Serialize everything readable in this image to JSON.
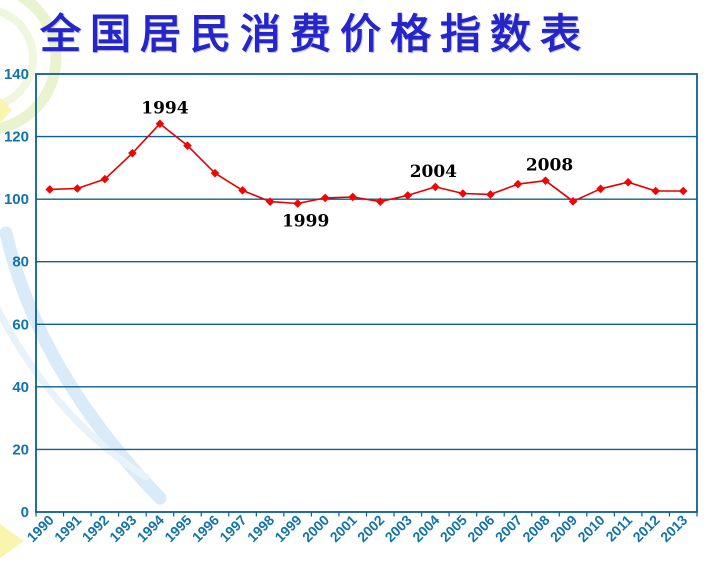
{
  "title": {
    "text": "全国居民消费价格指数表",
    "color": "#2525C9"
  },
  "chart_data": {
    "type": "line",
    "title": "全国居民消费价格指数表",
    "categories": [
      "1990",
      "1991",
      "1992",
      "1993",
      "1994",
      "1995",
      "1996",
      "1997",
      "1998",
      "1999",
      "2000",
      "2001",
      "2002",
      "2003",
      "2004",
      "2005",
      "2006",
      "2007",
      "2008",
      "2009",
      "2010",
      "2011",
      "2012",
      "2013"
    ],
    "values": [
      103.1,
      103.4,
      106.4,
      114.7,
      124.1,
      117.1,
      108.3,
      102.8,
      99.2,
      98.6,
      100.4,
      100.7,
      99.2,
      101.2,
      103.9,
      101.8,
      101.5,
      104.8,
      105.9,
      99.3,
      103.3,
      105.4,
      102.6,
      102.6
    ],
    "xlabel": "",
    "ylabel": "",
    "ylim": [
      0,
      140
    ],
    "ytick_interval": 20,
    "ytick_labels": [
      "0",
      "20",
      "40",
      "60",
      "80",
      "100",
      "120",
      "140"
    ],
    "grid": "horizontal",
    "legend": "none",
    "marker": "diamond",
    "annotations": [
      {
        "text": "1994",
        "category": "1994",
        "placement": "above"
      },
      {
        "text": "1999",
        "category": "1999",
        "placement": "below"
      },
      {
        "text": "2004",
        "category": "2004",
        "placement": "above"
      },
      {
        "text": "2008",
        "category": "2008",
        "placement": "above"
      }
    ]
  },
  "colors": {
    "series_line": "#E30000",
    "marker": "#F00505",
    "gridline": "#0D5F90",
    "plot_border": "#0D5F90",
    "axis_labels": "#1173A9",
    "annotation": "#000000",
    "title": "#2525C9",
    "decor_ring_green": "#E9F3D0",
    "decor_ring_green_light": "#F0F7DF",
    "decor_swoosh_blue": "#D9EBF8",
    "decor_swoosh_blue_light": "#E7F2FB",
    "decor_triangle_yellow": "#FAF5AE"
  }
}
